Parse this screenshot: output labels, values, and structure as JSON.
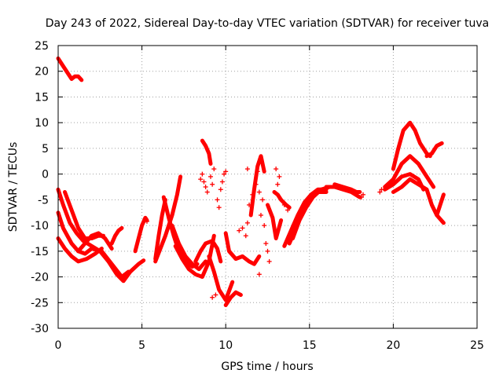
{
  "chart_data": {
    "type": "scatter",
    "title": "Day 243 of 2022, Sidereal Day-to-day VTEC variation (SDTVAR) for receiver tuva",
    "xlabel": "GPS time / hours",
    "ylabel": "SDTVAR / TECUs",
    "xlim": [
      0,
      25
    ],
    "ylim": [
      -30,
      25
    ],
    "x_ticks": [
      0,
      5,
      10,
      15,
      20,
      25
    ],
    "y_ticks": [
      -30,
      -25,
      -20,
      -15,
      -10,
      -5,
      0,
      5,
      10,
      15,
      20,
      25
    ],
    "x_tick_labels": [
      "0",
      "5",
      "10",
      "15",
      "20",
      "25"
    ],
    "y_tick_labels": [
      "-30",
      "-25",
      "-20",
      "-15",
      "-10",
      "-5",
      "0",
      "5",
      "10",
      "15",
      "20",
      "25"
    ],
    "grid": true,
    "legend": "none",
    "marker": "plus",
    "color": "#ff0000",
    "series": [
      {
        "name": "track-a",
        "x": [
          0.0,
          0.3,
          0.6,
          0.8,
          1.0,
          1.2,
          1.4
        ],
        "y": [
          22.5,
          21.0,
          19.5,
          18.5,
          19.0,
          19.0,
          18.3
        ]
      },
      {
        "name": "track-b",
        "x": [
          0.0,
          0.3,
          0.7,
          1.1,
          1.5,
          2.0,
          2.5,
          3.0,
          3.5,
          3.9,
          4.3,
          4.8,
          5.1
        ],
        "y": [
          -3.0,
          -6.0,
          -9.5,
          -11.5,
          -13.0,
          -14.0,
          -15.0,
          -17.0,
          -19.5,
          -20.8,
          -19.0,
          -17.5,
          -16.8
        ]
      },
      {
        "name": "track-c",
        "x": [
          0.0,
          0.3,
          0.8,
          1.2,
          1.6,
          2.0,
          2.6,
          3.2,
          3.8,
          4.2
        ],
        "y": [
          -7.5,
          -10.5,
          -13.5,
          -15.0,
          -15.5,
          -14.5,
          -15.0,
          -17.5,
          -20.0,
          -19.0
        ]
      },
      {
        "name": "track-d",
        "x": [
          0.0,
          0.4,
          0.8,
          1.2,
          1.7,
          2.2,
          2.6
        ],
        "y": [
          -12.5,
          -14.5,
          -16.0,
          -17.0,
          -16.5,
          -15.5,
          -14.5
        ]
      },
      {
        "name": "track-e",
        "x": [
          0.4,
          0.8,
          1.2,
          1.6,
          2.0,
          2.4,
          2.7
        ],
        "y": [
          -3.5,
          -7.0,
          -10.5,
          -12.5,
          -12.5,
          -12.0,
          -12.0
        ]
      },
      {
        "name": "track-f",
        "x": [
          1.2,
          1.6,
          2.0,
          2.4,
          2.8,
          3.2
        ],
        "y": [
          -15.0,
          -13.5,
          -12.0,
          -11.5,
          -12.5,
          -14.5
        ]
      },
      {
        "name": "track-g",
        "x": [
          3.2,
          3.4,
          3.6,
          3.8
        ],
        "y": [
          -13.5,
          -12.0,
          -11.0,
          -10.5
        ]
      },
      {
        "name": "track-h",
        "x": [
          4.6,
          4.8,
          5.0,
          5.2,
          5.3
        ],
        "y": [
          -15.0,
          -12.5,
          -10.0,
          -8.5,
          -9.0
        ]
      },
      {
        "name": "track-i",
        "x": [
          5.8,
          6.0,
          6.2,
          6.4
        ],
        "y": [
          -16.5,
          -12.0,
          -8.0,
          -5.0
        ]
      },
      {
        "name": "track-j",
        "x": [
          6.3,
          6.6,
          6.9,
          7.2,
          7.6,
          8.0,
          8.3
        ],
        "y": [
          -4.5,
          -8.5,
          -12.0,
          -15.0,
          -17.0,
          -18.0,
          -17.5
        ]
      },
      {
        "name": "track-k",
        "x": [
          5.8,
          6.1,
          6.4,
          6.8,
          7.1,
          7.3
        ],
        "y": [
          -17.0,
          -14.5,
          -12.0,
          -8.0,
          -4.0,
          -0.5
        ]
      },
      {
        "name": "track-l",
        "x": [
          6.8,
          7.2,
          7.6,
          8.0,
          8.4,
          8.8
        ],
        "y": [
          -10.0,
          -13.5,
          -16.0,
          -17.5,
          -18.5,
          -17.0
        ]
      },
      {
        "name": "track-m",
        "x": [
          7.0,
          7.4,
          7.8,
          8.2,
          8.6,
          9.0,
          9.3
        ],
        "y": [
          -14.0,
          -16.5,
          -18.5,
          -19.5,
          -20.0,
          -17.0,
          -12.0
        ]
      },
      {
        "name": "track-n",
        "x": [
          8.2,
          8.5,
          8.8,
          9.2,
          9.5,
          9.7
        ],
        "y": [
          -17.0,
          -15.0,
          -13.5,
          -13.0,
          -14.5,
          -17.0
        ]
      },
      {
        "name": "track-o",
        "x": [
          8.6,
          8.8,
          9.0,
          9.1
        ],
        "y": [
          6.5,
          5.5,
          4.0,
          2.0
        ]
      },
      {
        "name": "track-p",
        "x": [
          9.0,
          9.3,
          9.6,
          10.0,
          10.4
        ],
        "y": [
          -16.0,
          -19.0,
          -22.5,
          -24.5,
          -21.0
        ]
      },
      {
        "name": "track-q",
        "x": [
          10.0,
          10.3,
          10.6,
          10.9
        ],
        "y": [
          -25.5,
          -24.0,
          -23.0,
          -23.5
        ]
      },
      {
        "name": "track-r",
        "x": [
          10.0,
          10.2,
          10.6,
          11.0,
          11.4,
          11.7,
          12.0
        ],
        "y": [
          -11.5,
          -15.0,
          -16.5,
          -16.0,
          -17.0,
          -17.5,
          -16.0
        ]
      },
      {
        "name": "track-s",
        "x": [
          11.5,
          11.7,
          11.9,
          12.1,
          12.3
        ],
        "y": [
          -8.0,
          -3.0,
          1.5,
          3.5,
          0.5
        ]
      },
      {
        "name": "track-t",
        "x": [
          12.5,
          12.8,
          13.0,
          13.3
        ],
        "y": [
          -6.0,
          -8.5,
          -12.5,
          -9.0
        ]
      },
      {
        "name": "track-u",
        "x": [
          12.9,
          13.1,
          13.3,
          13.6,
          13.8
        ],
        "y": [
          -3.5,
          -4.0,
          -5.0,
          -6.0,
          -6.5
        ]
      },
      {
        "name": "track-v",
        "x": [
          13.5,
          13.9,
          14.3,
          14.7,
          15.1,
          15.5,
          16.0
        ],
        "y": [
          -14.0,
          -11.0,
          -8.0,
          -5.5,
          -4.0,
          -3.0,
          -3.0
        ]
      },
      {
        "name": "track-w",
        "x": [
          13.8,
          14.2,
          14.6,
          15.0,
          15.5,
          16.0
        ],
        "y": [
          -13.5,
          -10.5,
          -7.0,
          -4.5,
          -3.5,
          -3.5
        ]
      },
      {
        "name": "track-x",
        "x": [
          14.0,
          14.4,
          14.8,
          15.2,
          15.7,
          16.2
        ],
        "y": [
          -12.5,
          -9.0,
          -6.5,
          -4.5,
          -3.0,
          -2.5
        ]
      },
      {
        "name": "track-y",
        "x": [
          16.0,
          16.5,
          17.0,
          17.5,
          18.0
        ],
        "y": [
          -2.5,
          -2.5,
          -3.0,
          -3.5,
          -4.5
        ]
      },
      {
        "name": "track-z",
        "x": [
          16.5,
          17.0,
          17.5,
          17.8,
          18.0
        ],
        "y": [
          -2.0,
          -2.5,
          -3.0,
          -3.5,
          -3.5
        ]
      },
      {
        "name": "track-aa",
        "x": [
          19.5,
          20.0,
          20.5,
          21.0,
          21.5,
          21.8
        ],
        "y": [
          -3.0,
          -2.0,
          -0.5,
          0.0,
          -1.0,
          -3.0
        ]
      },
      {
        "name": "track-ab",
        "x": [
          20.0,
          20.3,
          20.6,
          21.0,
          21.3,
          21.6,
          22.0,
          22.2
        ],
        "y": [
          1.0,
          5.0,
          8.5,
          10.0,
          8.5,
          6.0,
          4.0,
          3.5
        ]
      },
      {
        "name": "track-ac",
        "x": [
          22.0,
          22.3,
          22.6,
          22.9
        ],
        "y": [
          3.5,
          4.0,
          5.5,
          6.0
        ]
      },
      {
        "name": "track-ad",
        "x": [
          19.5,
          20.0,
          20.5,
          21.0,
          21.5,
          22.0,
          22.4
        ],
        "y": [
          -2.5,
          -1.0,
          2.0,
          3.5,
          2.0,
          -0.5,
          -2.5
        ]
      },
      {
        "name": "track-ae",
        "x": [
          20.0,
          20.5,
          21.0,
          21.5,
          22.0,
          22.3,
          22.6,
          23.0
        ],
        "y": [
          -3.5,
          -2.5,
          -1.0,
          -2.0,
          -3.0,
          -6.0,
          -8.0,
          -9.5
        ]
      },
      {
        "name": "track-af",
        "x": [
          22.6,
          22.8,
          23.0
        ],
        "y": [
          -8.0,
          -6.0,
          -4.0
        ]
      }
    ],
    "points": [
      {
        "x": 8.6,
        "y": 0.0
      },
      {
        "x": 8.7,
        "y": -1.5
      },
      {
        "x": 8.8,
        "y": -2.5
      },
      {
        "x": 8.9,
        "y": -3.5
      },
      {
        "x": 8.5,
        "y": -1.0
      },
      {
        "x": 9.1,
        "y": -0.5
      },
      {
        "x": 9.2,
        "y": -2.0
      },
      {
        "x": 9.3,
        "y": 1.0
      },
      {
        "x": 9.5,
        "y": -5.0
      },
      {
        "x": 9.6,
        "y": -6.5
      },
      {
        "x": 9.7,
        "y": -3.0
      },
      {
        "x": 9.8,
        "y": -1.5
      },
      {
        "x": 9.9,
        "y": 0.0
      },
      {
        "x": 10.0,
        "y": 0.5
      },
      {
        "x": 11.0,
        "y": -10.5
      },
      {
        "x": 11.2,
        "y": -12.0
      },
      {
        "x": 11.3,
        "y": -9.5
      },
      {
        "x": 10.8,
        "y": -11.0
      },
      {
        "x": 11.4,
        "y": -6.0
      },
      {
        "x": 11.6,
        "y": -4.0
      },
      {
        "x": 11.8,
        "y": -2.0
      },
      {
        "x": 11.9,
        "y": 0.5
      },
      {
        "x": 12.0,
        "y": -3.5
      },
      {
        "x": 12.2,
        "y": -5.0
      },
      {
        "x": 12.4,
        "y": -13.5
      },
      {
        "x": 12.5,
        "y": -15.0
      },
      {
        "x": 12.1,
        "y": -8.0
      },
      {
        "x": 12.3,
        "y": -10.0
      },
      {
        "x": 11.3,
        "y": 1.0
      },
      {
        "x": 12.6,
        "y": -17.0
      },
      {
        "x": 12.0,
        "y": -19.5
      },
      {
        "x": 13.2,
        "y": -0.5
      },
      {
        "x": 13.0,
        "y": 1.0
      },
      {
        "x": 13.1,
        "y": -2.0
      },
      {
        "x": 13.5,
        "y": -6.0
      },
      {
        "x": 13.7,
        "y": -7.0
      },
      {
        "x": 13.8,
        "y": -12.0
      },
      {
        "x": 18.1,
        "y": -4.5
      },
      {
        "x": 18.2,
        "y": -4.0
      },
      {
        "x": 19.2,
        "y": -3.5
      },
      {
        "x": 19.3,
        "y": -3.0
      },
      {
        "x": 5.2,
        "y": -9.0
      },
      {
        "x": 5.3,
        "y": -9.2
      },
      {
        "x": 9.2,
        "y": -24.0
      },
      {
        "x": 9.4,
        "y": -23.5
      }
    ]
  }
}
